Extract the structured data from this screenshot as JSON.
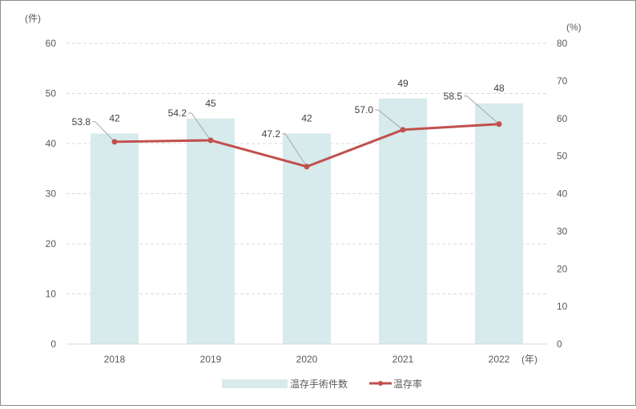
{
  "chart_data": {
    "type": "bar+line",
    "title": "",
    "categories": [
      "2018",
      "2019",
      "2020",
      "2021",
      "2022"
    ],
    "x_unit": "(年)",
    "y_left": {
      "unit": "(件)",
      "ylim": [
        0,
        60
      ],
      "ticks": [
        0,
        10,
        20,
        30,
        40,
        50,
        60
      ]
    },
    "y_right": {
      "unit": "(%)",
      "ylim": [
        0,
        80
      ],
      "ticks": [
        0,
        10,
        20,
        30,
        40,
        50,
        60,
        70,
        80
      ]
    },
    "grid": true,
    "legend_position": "bottom",
    "series": [
      {
        "name": "温存手術件数",
        "type": "bar",
        "axis": "left",
        "color": "#d7eaec",
        "values": [
          42,
          45,
          42,
          49,
          48
        ],
        "labels": [
          "42",
          "45",
          "42",
          "49",
          "48"
        ]
      },
      {
        "name": "温存率",
        "type": "line",
        "axis": "right",
        "color": "#c0504d",
        "values": [
          53.8,
          54.2,
          47.2,
          57.0,
          58.5
        ],
        "labels": [
          "53.8",
          "54.2",
          "47.2",
          "57.0",
          "58.5"
        ]
      }
    ]
  }
}
